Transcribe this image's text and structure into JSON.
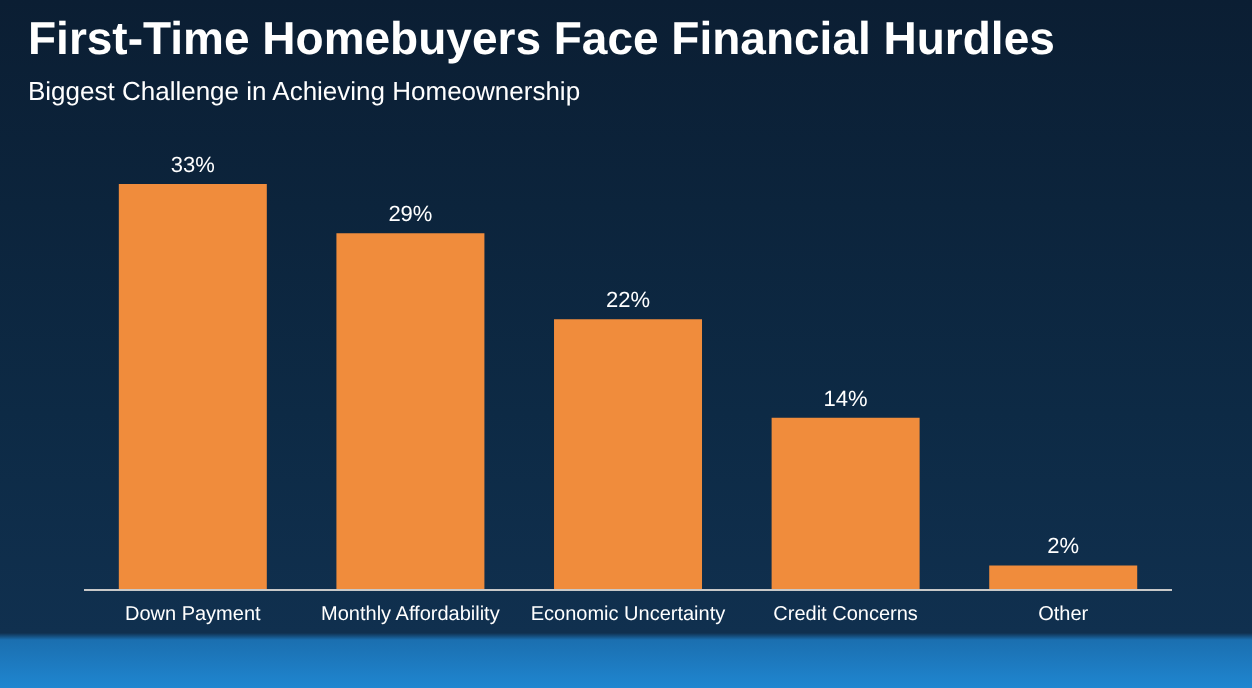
{
  "chart_data": {
    "type": "bar",
    "title": "First-Time Homebuyers Face Financial Hurdles",
    "subtitle": "Biggest Challenge in Achieving Homeownership",
    "categories": [
      "Down Payment",
      "Monthly Affordability",
      "Economic Uncertainty",
      "Credit Concerns",
      "Other"
    ],
    "values": [
      33,
      29,
      22,
      14,
      2
    ],
    "value_labels": [
      "33%",
      "29%",
      "22%",
      "14%",
      "2%"
    ],
    "color": "#f08c3c",
    "grid": false,
    "legend": false
  }
}
